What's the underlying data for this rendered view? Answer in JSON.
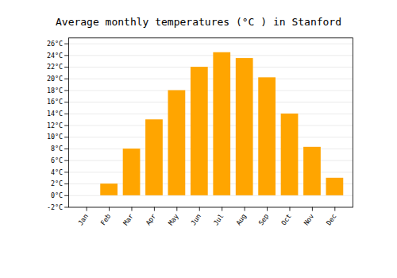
{
  "chart_data": {
    "type": "bar",
    "title": "Average monthly temperatures (°C ) in Stanford",
    "categories": [
      "Jan",
      "Feb",
      "Mar",
      "Apr",
      "May",
      "Jun",
      "Jul",
      "Aug",
      "Sep",
      "Oct",
      "Nov",
      "Dec"
    ],
    "values": [
      0,
      2,
      8,
      13,
      18,
      22,
      24.5,
      23.5,
      20.2,
      14,
      8.3,
      3
    ],
    "color": "#FFA500",
    "ylim": [
      -2,
      27
    ],
    "yticks": [
      {
        "value": -2,
        "label": "-2°C"
      },
      {
        "value": 0,
        "label": "0°C"
      },
      {
        "value": 2,
        "label": "2°C"
      },
      {
        "value": 4,
        "label": "4°C"
      },
      {
        "value": 6,
        "label": "6°C"
      },
      {
        "value": 8,
        "label": "8°C"
      },
      {
        "value": 10,
        "label": "10°C"
      },
      {
        "value": 12,
        "label": "12°C"
      },
      {
        "value": 14,
        "label": "14°C"
      },
      {
        "value": 16,
        "label": "16°C"
      },
      {
        "value": 18,
        "label": "18°C"
      },
      {
        "value": 20,
        "label": "20°C"
      },
      {
        "value": 22,
        "label": "22°C"
      },
      {
        "value": 24,
        "label": "24°C"
      },
      {
        "value": 26,
        "label": "26°C"
      }
    ],
    "grid": true
  }
}
